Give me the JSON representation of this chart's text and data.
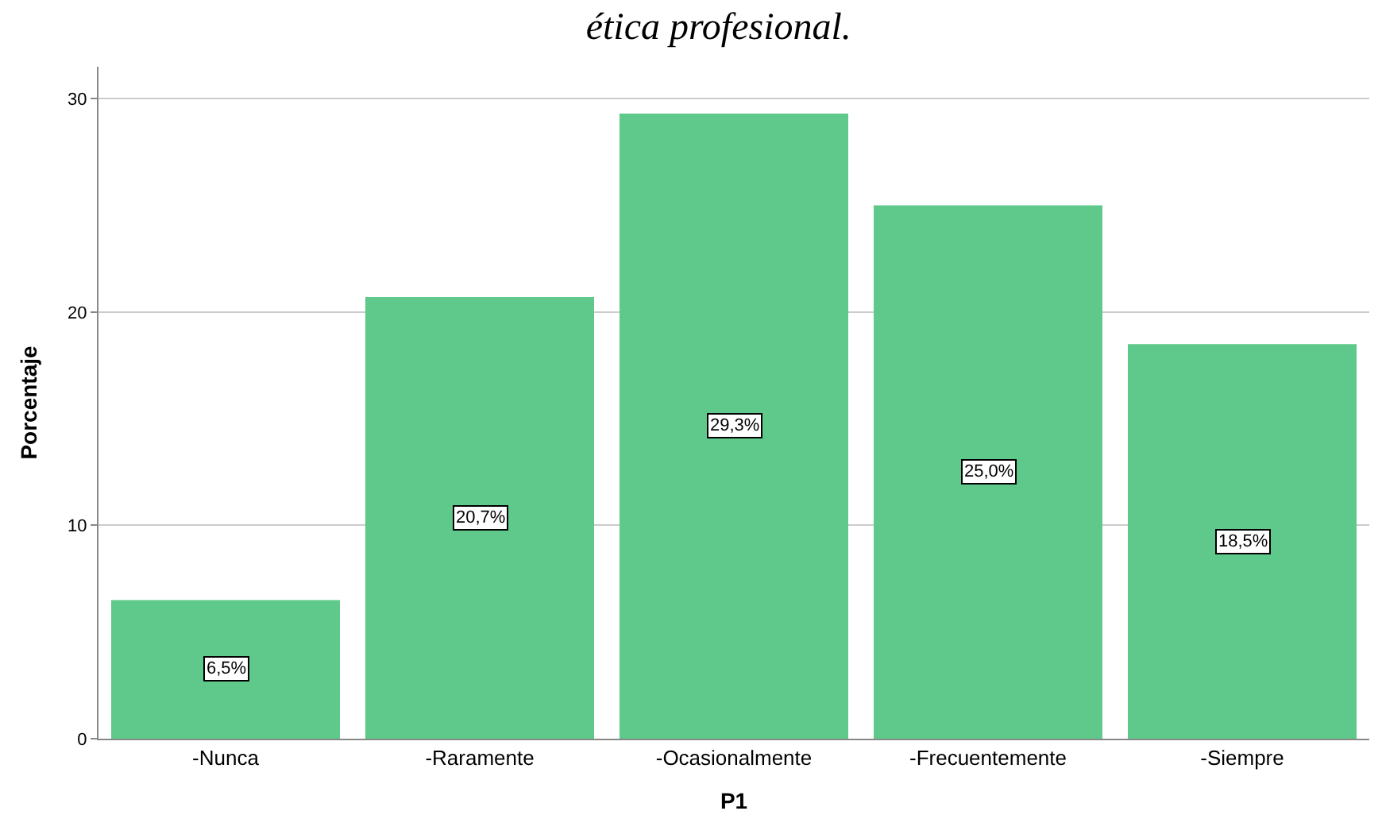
{
  "chart_data": {
    "type": "bar",
    "title": "ética profesional.",
    "xlabel": "P1",
    "ylabel": "Porcentaje",
    "categories": [
      "-Nunca",
      "-Raramente",
      "-Ocasionalmente",
      "-Frecuentemente",
      "-Siempre"
    ],
    "values": [
      6.5,
      20.7,
      29.3,
      25.0,
      18.5
    ],
    "value_labels": [
      "6,5%",
      "20,7%",
      "29,3%",
      "25,0%",
      "18,5%"
    ],
    "color": "#5ec98b",
    "ylim": [
      0,
      31.5
    ],
    "yticks": [
      0,
      10,
      20,
      30
    ],
    "grid": "y"
  }
}
